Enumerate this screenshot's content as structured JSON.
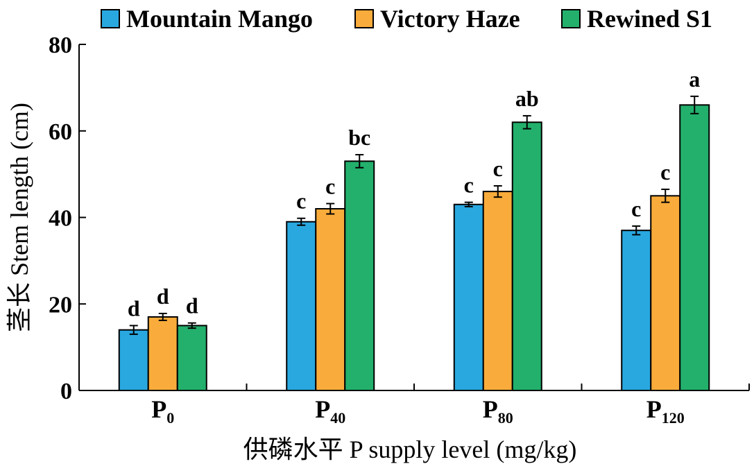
{
  "chart_data": {
    "type": "bar",
    "categories": [
      {
        "base": "P",
        "sub": "0"
      },
      {
        "base": "P",
        "sub": "40"
      },
      {
        "base": "P",
        "sub": "80"
      },
      {
        "base": "P",
        "sub": "120"
      }
    ],
    "series": [
      {
        "name": "Mountain Mango",
        "color": "#29a8e0",
        "values": [
          14,
          39,
          43,
          37
        ],
        "errors": [
          1.0,
          0.8,
          0.5,
          1.0
        ],
        "labels": [
          "d",
          "c",
          "c",
          "c"
        ]
      },
      {
        "name": "Victory Haze",
        "color": "#f9ac3b",
        "values": [
          17,
          42,
          46,
          45
        ],
        "errors": [
          0.8,
          1.2,
          1.3,
          1.5
        ],
        "labels": [
          "d",
          "c",
          "c",
          "c"
        ]
      },
      {
        "name": "Rewined S1",
        "color": "#23b06c",
        "values": [
          15,
          53,
          62,
          66
        ],
        "errors": [
          0.6,
          1.5,
          1.5,
          2.0
        ],
        "labels": [
          "d",
          "bc",
          "ab",
          "a"
        ]
      }
    ],
    "ylabel": "茎长 Stem length (cm)",
    "xlabel": "供磷水平 P supply level (mg/kg)",
    "ylim": [
      0,
      80
    ],
    "yticks": [
      0,
      20,
      40,
      60,
      80
    ],
    "legend_position": "top",
    "grid": false
  }
}
